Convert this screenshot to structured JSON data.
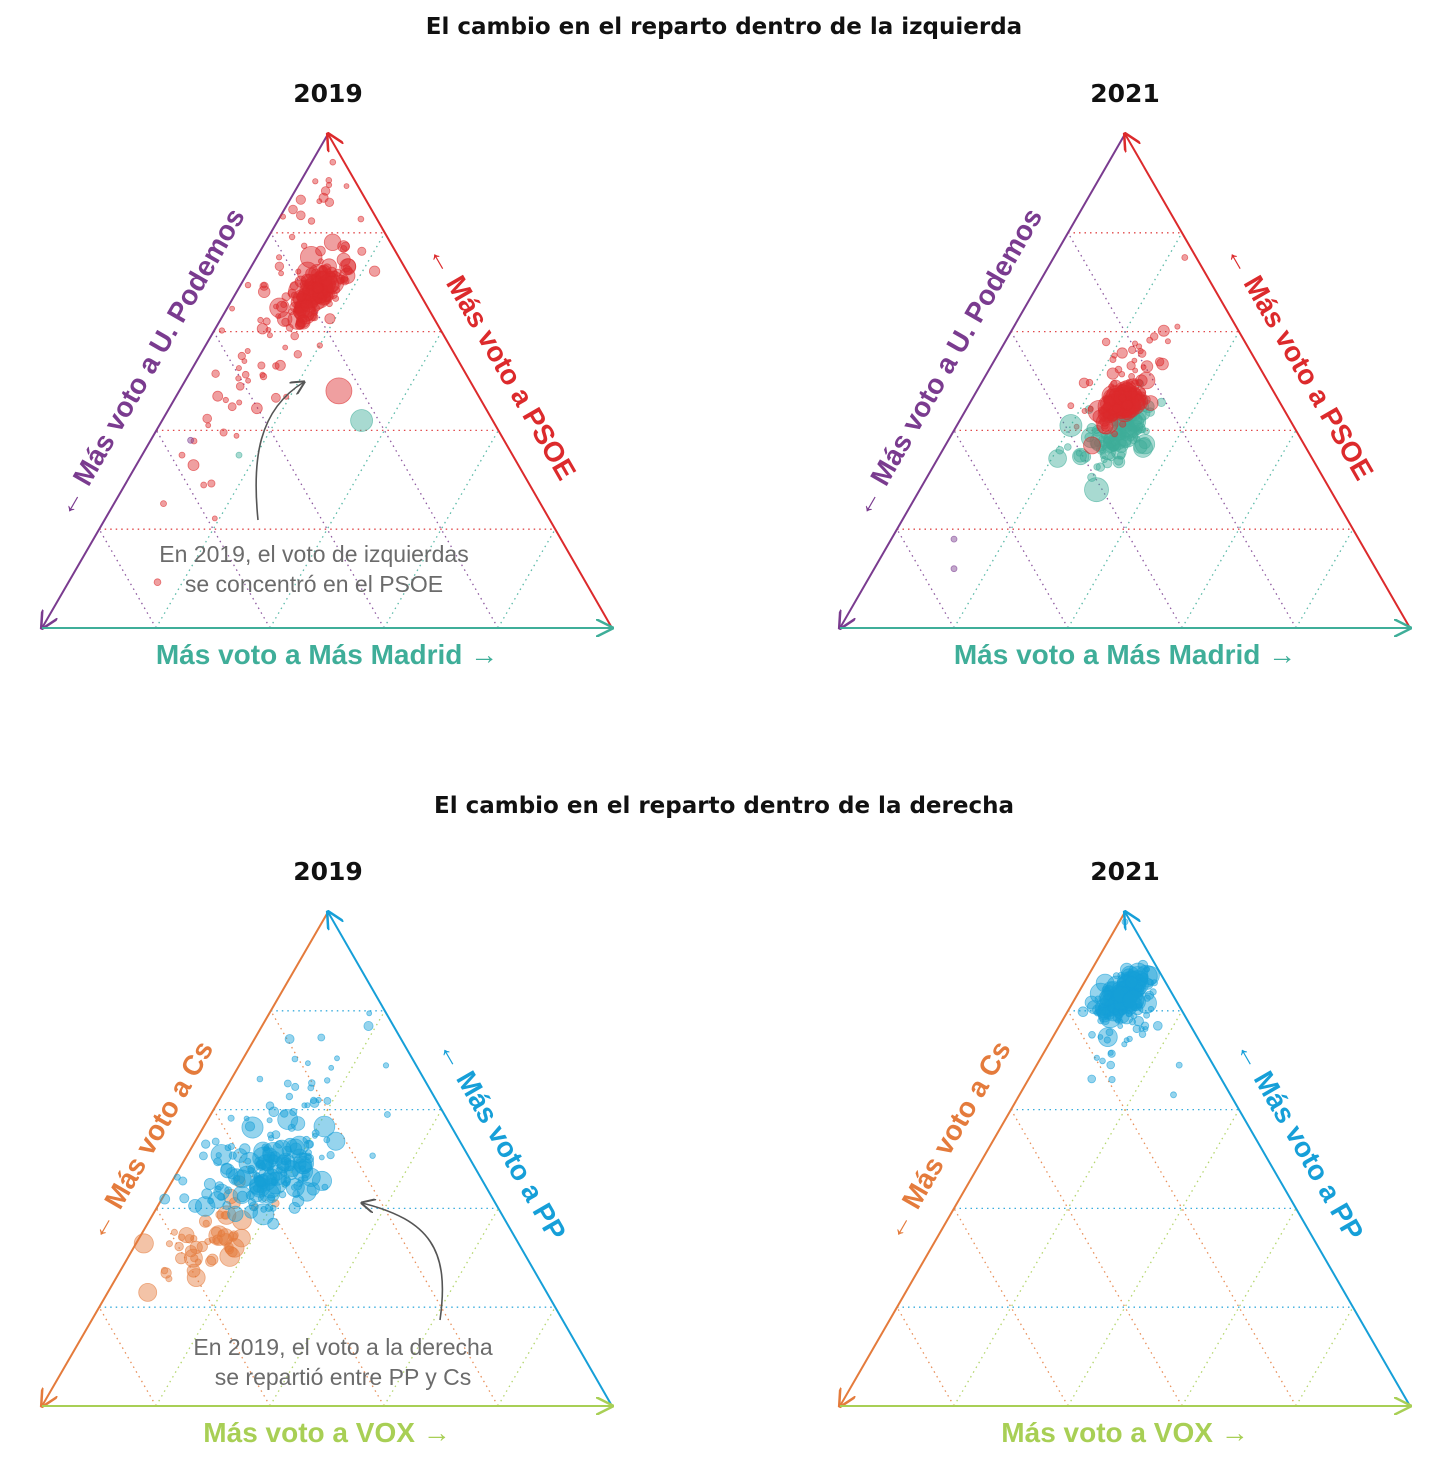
{
  "sections": [
    {
      "title": "El cambio en el reparto dentro de la izquierda"
    },
    {
      "title": "El cambio en el reparto dentro de la derecha"
    }
  ],
  "colors": {
    "podemos": "#7a3b8f",
    "psoe": "#dc2a2c",
    "mas_madrid": "#3fae99",
    "cs": "#e47b3c",
    "pp": "#169fd8",
    "vox": "#a8cf55",
    "annotation": "#6b6b6b"
  },
  "chart_data": [
    {
      "type": "scatter",
      "subtype": "ternary",
      "section": 0,
      "title": "2019",
      "axes": {
        "left": "← Más voto a U. Podemos",
        "right": "← Más voto a PSOE",
        "bottom": "Más voto a Más Madrid →"
      },
      "axis_colors": {
        "left": "#7a3b8f",
        "right": "#dc2a2c",
        "bottom": "#3fae99"
      },
      "grid_colors": {
        "left": "#7a3b8f",
        "right": "#dc2a2c",
        "bottom": "#3fae99"
      },
      "annotation": [
        "En 2019, el voto de izquierdas",
        "se concentró en el PSOE"
      ],
      "clusters": [
        {
          "series": "PSOE",
          "color": "#dc2a2c",
          "n": 140,
          "p": 0.68,
          "m": 0.14,
          "sp": 0.035,
          "sm": 0.02,
          "r": [
            3,
            12
          ]
        },
        {
          "series": "PSOE",
          "color": "#dc2a2c",
          "n": 70,
          "p": 0.58,
          "m": 0.11,
          "sp": 0.14,
          "sm": 0.04,
          "r": [
            2.5,
            6
          ]
        },
        {
          "series": "PSOE",
          "color": "#dc2a2c",
          "n": 15,
          "p": 0.85,
          "m": 0.04,
          "sp": 0.06,
          "sm": 0.02,
          "r": [
            2.5,
            5
          ]
        }
      ],
      "points": [
        {
          "series": "Más Madrid",
          "color": "#3fae99",
          "p": 0.42,
          "m": 0.35,
          "r": 11
        },
        {
          "series": "Más Madrid",
          "color": "#3fae99",
          "p": 0.35,
          "m": 0.17,
          "r": 3
        },
        {
          "series": "PSOE",
          "color": "#dc2a2c",
          "p": 0.48,
          "m": 0.28,
          "r": 13
        },
        {
          "series": "PSOE",
          "color": "#dc2a2c",
          "p": 0.35,
          "m": 0.07,
          "r": 3
        },
        {
          "series": "U. Podemos",
          "color": "#7a3b8f",
          "p": 0.38,
          "m": 0.07,
          "r": 3
        }
      ]
    },
    {
      "type": "scatter",
      "subtype": "ternary",
      "section": 0,
      "title": "2021",
      "axes": {
        "left": "← Más voto a U. Podemos",
        "right": "← Más voto a PSOE",
        "bottom": "Más voto a Más Madrid →"
      },
      "axis_colors": {
        "left": "#7a3b8f",
        "right": "#dc2a2c",
        "bottom": "#3fae99"
      },
      "grid_colors": {
        "left": "#7a3b8f",
        "right": "#dc2a2c",
        "bottom": "#3fae99"
      },
      "annotation": [],
      "clusters": [
        {
          "series": "Más Madrid",
          "color": "#3fae99",
          "n": 110,
          "p": 0.38,
          "m": 0.29,
          "sp": 0.035,
          "sm": 0.028,
          "r": [
            3,
            11
          ]
        },
        {
          "series": "PSOE",
          "color": "#dc2a2c",
          "n": 130,
          "p": 0.45,
          "m": 0.27,
          "sp": 0.02,
          "sm": 0.015,
          "r": [
            3,
            12
          ]
        },
        {
          "series": "PSOE",
          "color": "#dc2a2c",
          "n": 45,
          "p": 0.51,
          "m": 0.24,
          "sp": 0.06,
          "sm": 0.03,
          "r": [
            2.5,
            6
          ]
        }
      ],
      "points": [
        {
          "series": "PSOE",
          "color": "#dc2a2c",
          "p": 0.75,
          "m": 0.23,
          "r": 3
        },
        {
          "series": "PSOE",
          "color": "#dc2a2c",
          "p": 0.45,
          "m": 0.18,
          "r": 3
        },
        {
          "series": "Más Madrid",
          "color": "#3fae99",
          "p": 0.28,
          "m": 0.31,
          "r": 12
        },
        {
          "series": "Más Madrid",
          "color": "#3fae99",
          "p": 0.41,
          "m": 0.2,
          "r": 11
        },
        {
          "series": "U. Podemos",
          "color": "#7a3b8f",
          "p": 0.18,
          "m": 0.11,
          "r": 3
        },
        {
          "series": "U. Podemos",
          "color": "#7a3b8f",
          "p": 0.12,
          "m": 0.14,
          "r": 3
        }
      ]
    },
    {
      "type": "scatter",
      "subtype": "ternary",
      "section": 1,
      "title": "2019",
      "axes": {
        "left": "← Más voto a Cs",
        "right": "← Más voto a PP",
        "bottom": "Más voto a VOX →"
      },
      "axis_colors": {
        "left": "#e47b3c",
        "right": "#169fd8",
        "bottom": "#a8cf55"
      },
      "grid_colors": {
        "left": "#e47b3c",
        "right": "#169fd8",
        "bottom": "#a8cf55"
      },
      "annotation": [
        "En 2019, el voto a la derecha",
        "se repartió entre PP y Cs"
      ],
      "clusters": [
        {
          "series": "Cs",
          "color": "#e47b3c",
          "n": 50,
          "p": 0.33,
          "m": 0.13,
          "sp": 0.045,
          "sm": 0.04,
          "r": [
            3,
            10
          ]
        },
        {
          "series": "PP",
          "color": "#169fd8",
          "n": 160,
          "p": 0.47,
          "m": 0.16,
          "sp": 0.045,
          "sm": 0.05,
          "r": [
            3,
            11
          ]
        },
        {
          "series": "PP",
          "color": "#169fd8",
          "n": 40,
          "p": 0.63,
          "m": 0.15,
          "sp": 0.08,
          "sm": 0.05,
          "r": [
            2.5,
            5
          ]
        }
      ],
      "points": [
        {
          "series": "PP",
          "color": "#169fd8",
          "p": 0.58,
          "m": 0.14,
          "r": 10
        },
        {
          "series": "PP",
          "color": "#169fd8",
          "p": 0.52,
          "m": 0.16,
          "r": 9
        },
        {
          "series": "PP",
          "color": "#169fd8",
          "p": 0.59,
          "m": 0.31,
          "r": 3
        },
        {
          "series": "Cs",
          "color": "#e47b3c",
          "p": 0.23,
          "m": 0.07,
          "r": 9
        },
        {
          "series": "Cs",
          "color": "#e47b3c",
          "p": 0.26,
          "m": 0.14,
          "r": 9
        }
      ]
    },
    {
      "type": "scatter",
      "subtype": "ternary",
      "section": 1,
      "title": "2021",
      "axes": {
        "left": "← Más voto a Cs",
        "right": "← Más voto a PP",
        "bottom": "Más voto a VOX →"
      },
      "axis_colors": {
        "left": "#e47b3c",
        "right": "#169fd8",
        "bottom": "#a8cf55"
      },
      "grid_colors": {
        "left": "#e47b3c",
        "right": "#169fd8",
        "bottom": "#a8cf55"
      },
      "annotation": [],
      "clusters": [
        {
          "series": "PP",
          "color": "#169fd8",
          "n": 200,
          "p": 0.83,
          "m": 0.08,
          "sp": 0.025,
          "sm": 0.018,
          "r": [
            3,
            11
          ]
        },
        {
          "series": "PP",
          "color": "#169fd8",
          "n": 35,
          "p": 0.78,
          "m": 0.12,
          "sp": 0.05,
          "sm": 0.03,
          "r": [
            2.5,
            5
          ]
        }
      ],
      "points": [
        {
          "series": "PP",
          "color": "#169fd8",
          "p": 0.98,
          "m": 0.01,
          "r": 3
        },
        {
          "series": "PP",
          "color": "#169fd8",
          "p": 0.63,
          "m": 0.27,
          "r": 3
        },
        {
          "series": "PP",
          "color": "#169fd8",
          "p": 0.69,
          "m": 0.25,
          "r": 3
        }
      ]
    }
  ]
}
